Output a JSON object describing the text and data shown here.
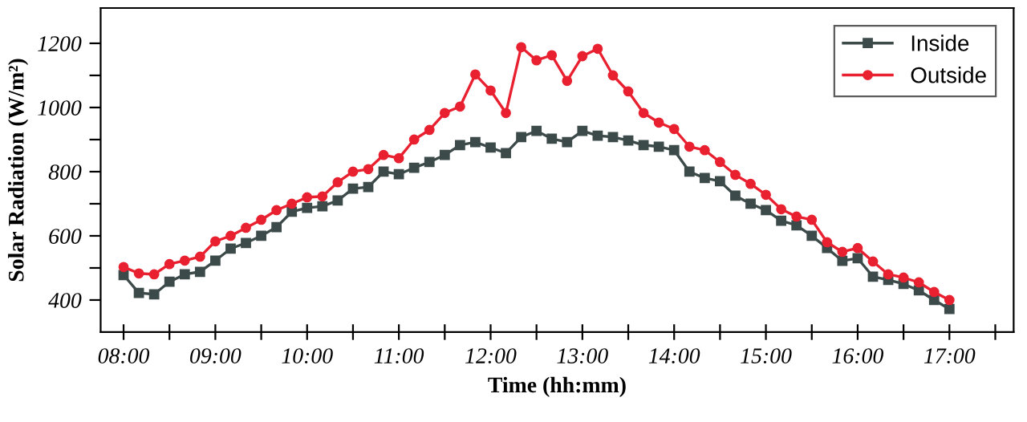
{
  "chart_data": {
    "type": "line",
    "xlabel": "Time (hh:mm)",
    "ylabel": "Solar Radiation (W/m²)",
    "x": [
      8.0,
      8.1667,
      8.3333,
      8.5,
      8.6667,
      8.8333,
      9.0,
      9.1667,
      9.3333,
      9.5,
      9.6667,
      9.8333,
      10.0,
      10.1667,
      10.3333,
      10.5,
      10.6667,
      10.8333,
      11.0,
      11.1667,
      11.3333,
      11.5,
      11.6667,
      11.8333,
      12.0,
      12.1667,
      12.3333,
      12.5,
      12.6667,
      12.8333,
      13.0,
      13.1667,
      13.3333,
      13.5,
      13.6667,
      13.8333,
      14.0,
      14.1667,
      14.3333,
      14.5,
      14.6667,
      14.8333,
      15.0,
      15.1667,
      15.3333,
      15.5,
      15.6667,
      15.8333,
      16.0,
      16.1667,
      16.3333,
      16.5,
      16.6667,
      16.8333,
      17.0
    ],
    "series": [
      {
        "name": "Inside",
        "color": "#3d4a4a",
        "marker": "square",
        "values": [
          478,
          422,
          418,
          457,
          480,
          488,
          523,
          560,
          578,
          600,
          627,
          675,
          687,
          692,
          710,
          747,
          752,
          800,
          792,
          812,
          830,
          852,
          883,
          892,
          875,
          858,
          908,
          927,
          903,
          892,
          927,
          912,
          908,
          897,
          883,
          878,
          867,
          800,
          780,
          770,
          725,
          700,
          680,
          647,
          633,
          600,
          562,
          522,
          530,
          473,
          463,
          450,
          430,
          400,
          372
        ]
      },
      {
        "name": "Outside",
        "color": "#e8202f",
        "marker": "circle",
        "values": [
          503,
          483,
          480,
          512,
          523,
          535,
          583,
          600,
          625,
          650,
          680,
          700,
          720,
          723,
          767,
          800,
          808,
          852,
          842,
          900,
          930,
          983,
          1003,
          1103,
          1053,
          983,
          1188,
          1147,
          1163,
          1083,
          1160,
          1183,
          1100,
          1050,
          983,
          953,
          933,
          878,
          867,
          830,
          790,
          762,
          728,
          683,
          660,
          650,
          580,
          550,
          562,
          520,
          480,
          470,
          455,
          425,
          400
        ]
      }
    ],
    "xlim": [
      7.75,
      17.7
    ],
    "xticks": [
      {
        "value": 8,
        "label": "08:00"
      },
      {
        "value": 8.5,
        "label": null
      },
      {
        "value": 9,
        "label": "09:00"
      },
      {
        "value": 9.5,
        "label": null
      },
      {
        "value": 10,
        "label": "10:00"
      },
      {
        "value": 10.5,
        "label": null
      },
      {
        "value": 11,
        "label": "11:00"
      },
      {
        "value": 11.5,
        "label": null
      },
      {
        "value": 12,
        "label": "12:00"
      },
      {
        "value": 12.5,
        "label": null
      },
      {
        "value": 13,
        "label": "13:00"
      },
      {
        "value": 13.5,
        "label": null
      },
      {
        "value": 14,
        "label": "14:00"
      },
      {
        "value": 14.5,
        "label": null
      },
      {
        "value": 15,
        "label": "15:00"
      },
      {
        "value": 15.5,
        "label": null
      },
      {
        "value": 16,
        "label": "16:00"
      },
      {
        "value": 16.5,
        "label": null
      },
      {
        "value": 17,
        "label": "17:00"
      },
      {
        "value": 17.5,
        "label": null
      }
    ],
    "ylim": [
      300,
      1310
    ],
    "yticks": [
      400,
      {
        "value": 500,
        "label": null
      },
      600,
      {
        "value": 700,
        "label": null
      },
      800,
      {
        "value": 900,
        "label": null
      },
      1000,
      {
        "value": 1100,
        "label": null
      },
      1200
    ],
    "grid": false,
    "legend": "top right",
    "line_style": "solid"
  }
}
